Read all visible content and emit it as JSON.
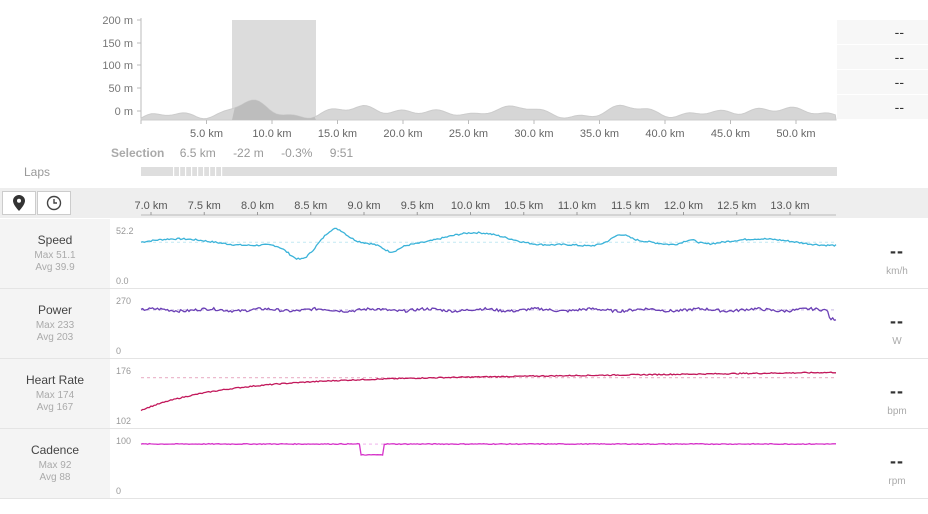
{
  "elevation": {
    "y_ticks": [
      "200 m",
      "150 m",
      "100 m",
      "50 m",
      "0 m"
    ],
    "x_ticks": [
      "5.0 km",
      "10.0 km",
      "15.0 km",
      "20.0 km",
      "25.0 km",
      "30.0 km",
      "35.0 km",
      "40.0 km",
      "45.0 km",
      "50.0 km"
    ],
    "selection_range_km": [
      7.0,
      13.5
    ]
  },
  "summary_right": [
    "--",
    "--",
    "--",
    "--"
  ],
  "selection": {
    "label": "Selection",
    "distance": "6.5 km",
    "elevation": "-22 m",
    "grade": "-0.3%",
    "time": "9:51"
  },
  "laps": {
    "label": "Laps"
  },
  "toolbar": {
    "location_icon": "map-pin-icon",
    "time_icon": "clock-icon"
  },
  "detail_axis": {
    "ticks": [
      "7.0 km",
      "7.5 km",
      "8.0 km",
      "8.5 km",
      "9.0 km",
      "9.5 km",
      "10.0 km",
      "10.5 km",
      "11.0 km",
      "11.5 km",
      "12.0 km",
      "12.5 km",
      "13.0 km"
    ]
  },
  "metrics": [
    {
      "name": "Speed",
      "max": "Max 51.1",
      "avg": "Avg 39.9",
      "top": "52.2",
      "bottom": "0.0",
      "value": "--",
      "unit": "km/h",
      "color": "#3bb3d9"
    },
    {
      "name": "Power",
      "max": "Max 233",
      "avg": "Avg 203",
      "top": "270",
      "bottom": "0",
      "value": "--",
      "unit": "W",
      "color": "#6a3fb5"
    },
    {
      "name": "Heart Rate",
      "max": "Max 174",
      "avg": "Avg 167",
      "top": "176",
      "bottom": "102",
      "value": "--",
      "unit": "bpm",
      "color": "#c2185b"
    },
    {
      "name": "Cadence",
      "max": "Max 92",
      "avg": "Avg 88",
      "top": "100",
      "bottom": "0",
      "value": "--",
      "unit": "rpm",
      "color": "#d633c9"
    }
  ]
}
